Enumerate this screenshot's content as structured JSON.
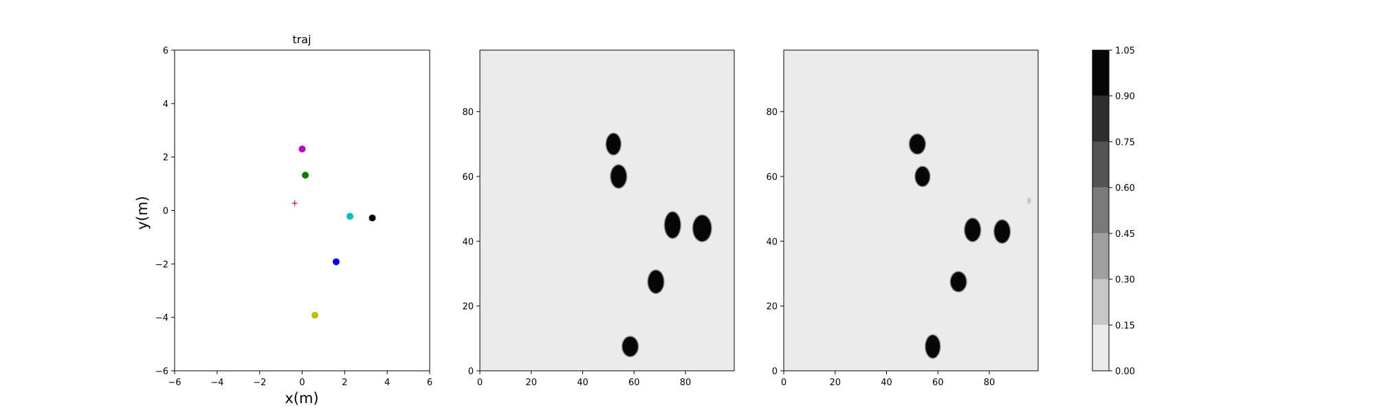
{
  "chart_data": [
    {
      "type": "scatter",
      "title": "traj",
      "xlabel": "x(m)",
      "ylabel": "y(m)",
      "xlim": [
        -6,
        6
      ],
      "ylim": [
        -6,
        6
      ],
      "xticks": [
        -6,
        -4,
        -2,
        0,
        2,
        4,
        6
      ],
      "yticks": [
        -6,
        -4,
        -2,
        0,
        2,
        4,
        6
      ],
      "grid": false,
      "points": [
        {
          "x": 0.0,
          "y": 2.3,
          "color": "#bf00bf",
          "marker": "circle"
        },
        {
          "x": 0.15,
          "y": 1.32,
          "color": "#008000",
          "marker": "circle"
        },
        {
          "x": -0.35,
          "y": 0.27,
          "color": "#ff0000",
          "marker": "plus"
        },
        {
          "x": 2.25,
          "y": -0.22,
          "color": "#00bfbf",
          "marker": "circle"
        },
        {
          "x": 3.3,
          "y": -0.28,
          "color": "#000000",
          "marker": "circle"
        },
        {
          "x": 1.6,
          "y": -1.92,
          "color": "#0000ff",
          "marker": "circle"
        },
        {
          "x": 0.6,
          "y": -3.92,
          "color": "#bfbf00",
          "marker": "circle"
        }
      ]
    },
    {
      "type": "heatmap",
      "title": "",
      "xlim": [
        0,
        99
      ],
      "ylim": [
        0,
        99
      ],
      "xticks": [
        0,
        20,
        40,
        60,
        80
      ],
      "yticks": [
        0,
        20,
        40,
        60,
        80
      ],
      "background_value": 0.05,
      "blobs": [
        {
          "x": 52,
          "y": 70,
          "w": 5.5,
          "h": 6.5,
          "value": 1.0
        },
        {
          "x": 54,
          "y": 60,
          "w": 6,
          "h": 7,
          "value": 1.0
        },
        {
          "x": 75,
          "y": 45,
          "w": 6,
          "h": 8,
          "value": 1.0
        },
        {
          "x": 86.5,
          "y": 44,
          "w": 7,
          "h": 8,
          "value": 1.0
        },
        {
          "x": 68.5,
          "y": 27.5,
          "w": 6,
          "h": 7,
          "value": 1.0
        },
        {
          "x": 58.5,
          "y": 7.5,
          "w": 6,
          "h": 6,
          "value": 1.0
        }
      ]
    },
    {
      "type": "heatmap",
      "title": "",
      "xlim": [
        0,
        99
      ],
      "ylim": [
        0,
        99
      ],
      "xticks": [
        0,
        20,
        40,
        60,
        80
      ],
      "yticks": [
        0,
        20,
        40,
        60,
        80
      ],
      "background_value": 0.05,
      "blobs": [
        {
          "x": 52,
          "y": 70,
          "w": 6,
          "h": 6,
          "value": 1.0
        },
        {
          "x": 54,
          "y": 60,
          "w": 5.5,
          "h": 6,
          "value": 1.0
        },
        {
          "x": 73.5,
          "y": 43.5,
          "w": 6,
          "h": 7,
          "value": 1.0
        },
        {
          "x": 85,
          "y": 43,
          "w": 6,
          "h": 7,
          "value": 1.0
        },
        {
          "x": 68,
          "y": 27.5,
          "w": 6,
          "h": 6,
          "value": 1.0
        },
        {
          "x": 58,
          "y": 7.5,
          "w": 5.5,
          "h": 7,
          "value": 1.0
        },
        {
          "x": 95.5,
          "y": 52.5,
          "w": 1.6,
          "h": 2,
          "value": 0.2
        }
      ]
    },
    {
      "type": "colorbar",
      "levels": [
        0.0,
        0.15,
        0.3,
        0.45,
        0.6,
        0.75,
        0.9,
        1.05
      ],
      "tick_labels": [
        "0.00",
        "0.15",
        "0.30",
        "0.45",
        "0.60",
        "0.75",
        "0.90",
        "1.05"
      ],
      "colors": [
        "#ebebeb",
        "#c8c8c8",
        "#a0a0a0",
        "#7a7a7a",
        "#545454",
        "#2d2d2d",
        "#070707"
      ]
    }
  ]
}
